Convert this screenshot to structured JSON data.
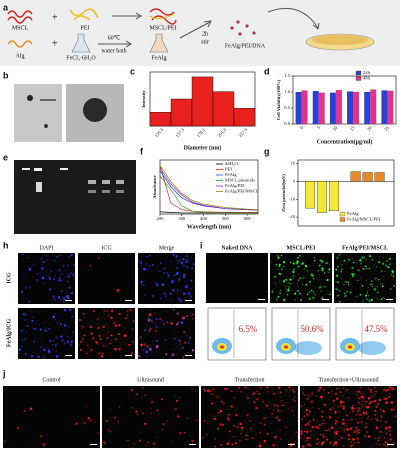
{
  "panel_labels": [
    "a",
    "b",
    "c",
    "d",
    "e",
    "f",
    "g",
    "h",
    "i",
    "j"
  ],
  "scheme": {
    "mscl": "MSCL",
    "pei": "PEI",
    "mscl_pei": "MSCL/PEI",
    "alg": "Alg",
    "fecl3": "FeCl₃·6H₂O",
    "bath_temp": "60℃",
    "bath": "water bath",
    "fealg": "FeAlg",
    "time": "2h",
    "stir": "stir",
    "product": "FeAlg/PEI/DNA"
  },
  "chart_data": [
    {
      "type": "bar",
      "y_label": "Intensity",
      "x_label": "Diameter (nm)",
      "categories": [
        "126.3",
        "157.3",
        "178.1",
        "201.3",
        "227.3"
      ],
      "values": [
        28,
        55,
        100,
        70,
        36
      ],
      "color": "#e8211d",
      "ylim": [
        0,
        110
      ]
    },
    {
      "type": "grouped_bar",
      "y_label": "Cell Viability(100%)",
      "x_label": "Concentration(μg/ml)",
      "categories": [
        "0",
        "5",
        "10",
        "15",
        "20",
        "25"
      ],
      "series": [
        {
          "name": "24h",
          "color": "#2b3fd6",
          "values": [
            1.0,
            1.03,
            0.98,
            1.02,
            1.0,
            1.05
          ]
        },
        {
          "name": "48h",
          "color": "#e0338a",
          "values": [
            1.05,
            0.98,
            1.06,
            1.0,
            1.08,
            1.04
          ]
        }
      ],
      "ylim": [
        0,
        1.5
      ],
      "yticks": [
        {
          "value": 0,
          "label": "0.0"
        },
        {
          "value": 0.5,
          "label": "0.5"
        },
        {
          "value": 1,
          "label": "1.0"
        },
        {
          "value": 1.5,
          "label": "1.5"
        }
      ]
    },
    {
      "type": "line",
      "y_label": "Absorbance",
      "x_label": "Wavelength (nm)",
      "x": [
        200,
        250,
        300,
        350,
        400,
        500,
        600,
        650
      ],
      "series": [
        {
          "name": "ddH₂O",
          "color": "#000000",
          "values": [
            0.04,
            0.03,
            0.02,
            0.02,
            0.02,
            0.02,
            0.02,
            0.02
          ]
        },
        {
          "name": "PEI",
          "color": "#e02020",
          "values": [
            0.9,
            0.2,
            0.08,
            0.05,
            0.04,
            0.03,
            0.03,
            0.03
          ]
        },
        {
          "name": "FeAlg",
          "color": "#2040e0",
          "values": [
            0.8,
            0.5,
            0.3,
            0.2,
            0.15,
            0.1,
            0.08,
            0.07
          ]
        },
        {
          "name": "MSCL plasmids",
          "color": "#20a020",
          "values": [
            0.7,
            0.45,
            0.15,
            0.05,
            0.03,
            0.02,
            0.02,
            0.02
          ]
        },
        {
          "name": "FeAlg/PEI",
          "color": "#9020b0",
          "values": [
            0.85,
            0.55,
            0.35,
            0.22,
            0.16,
            0.1,
            0.08,
            0.07
          ]
        },
        {
          "name": "FeAlg/PEI/MSCL",
          "color": "#8a8a10",
          "values": [
            0.9,
            0.6,
            0.38,
            0.25,
            0.18,
            0.12,
            0.09,
            0.08
          ]
        }
      ],
      "xlim": [
        200,
        650
      ],
      "ylim": [
        0,
        1
      ],
      "xticks": [
        200,
        300,
        400,
        500,
        600
      ]
    },
    {
      "type": "bar",
      "y_label": "Zeta potential(mV)",
      "series": [
        {
          "name": "FeAlg",
          "color": "#f2e83a",
          "values": [
            -15,
            -17.5,
            -16.5
          ]
        },
        {
          "name": "FeAlg/MSCL/PEI",
          "color": "#e8892a",
          "values": [
            5.5,
            5,
            5
          ]
        }
      ],
      "ylim": [
        -25,
        12
      ],
      "yticks": [
        10,
        0,
        -10,
        -20
      ]
    }
  ],
  "fluorescence": {
    "columns": [
      "DAPI",
      "ICG",
      "Merge"
    ],
    "rows": [
      "ICG",
      "FeAlg/ICG"
    ]
  },
  "transfection": {
    "columns": [
      "Naked DNA",
      "MSCL/PEI",
      "FeAlg/PEI/MSCL"
    ],
    "percentages": [
      "6.5%",
      "50.6%",
      "47.5%"
    ]
  },
  "ultrasound": {
    "columns": [
      "Control",
      "Ultrasound",
      "Transfection",
      "Transfection+Ultrasound"
    ]
  }
}
